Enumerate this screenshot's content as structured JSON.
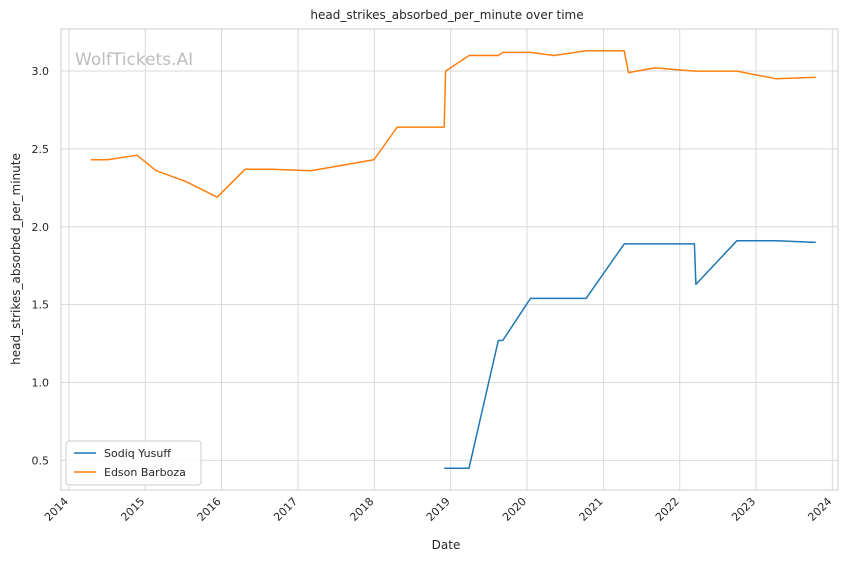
{
  "chart_data": {
    "type": "line",
    "title": "head_strikes_absorbed_per_minute over time",
    "xlabel": "Date",
    "ylabel": "head_strikes_absorbed_per_minute",
    "watermark": "WolfTickets.AI",
    "xlim": [
      "2013-11-24",
      "2024-01-28"
    ],
    "ylim": [
      0.31,
      3.27
    ],
    "x_ticks": [
      "2014",
      "2015",
      "2016",
      "2017",
      "2018",
      "2019",
      "2020",
      "2021",
      "2022",
      "2023",
      "2024"
    ],
    "y_ticks": [
      "0.5",
      "1.0",
      "1.5",
      "2.0",
      "2.5",
      "3.0"
    ],
    "grid": true,
    "legend_position": "lower-left",
    "series": [
      {
        "name": "Sodiq Yusuff",
        "color": "#1f77b4",
        "x": [
          "2018-12-01",
          "2019-03-30",
          "2019-08-17",
          "2019-09-07",
          "2020-01-18",
          "2020-10-10",
          "2021-04-10",
          "2022-03-12",
          "2022-03-19",
          "2022-10-01",
          "2023-04-08",
          "2023-10-14"
        ],
        "y": [
          0.45,
          0.45,
          1.27,
          1.27,
          1.54,
          1.54,
          1.89,
          1.89,
          1.63,
          1.91,
          1.91,
          1.9
        ]
      },
      {
        "name": "Edson Barboza",
        "color": "#ff7f0e",
        "x": [
          "2014-04-16",
          "2014-07-05",
          "2014-11-22",
          "2015-02-22",
          "2015-07-15",
          "2015-12-11",
          "2016-04-23",
          "2016-08-27",
          "2017-03-04",
          "2017-12-30",
          "2018-04-21",
          "2018-12-01",
          "2018-12-08",
          "2019-03-30",
          "2019-08-17",
          "2019-09-07",
          "2020-01-18",
          "2020-05-09",
          "2020-10-10",
          "2021-04-10",
          "2021-05-01",
          "2021-09-04",
          "2022-03-12",
          "2022-10-01",
          "2023-04-08",
          "2023-10-14"
        ],
        "y": [
          2.43,
          2.43,
          2.46,
          2.36,
          2.29,
          2.19,
          2.37,
          2.37,
          2.36,
          2.43,
          2.64,
          2.64,
          3.0,
          3.1,
          3.1,
          3.12,
          3.12,
          3.1,
          3.13,
          3.13,
          2.99,
          3.02,
          3.0,
          3.0,
          2.95,
          2.96
        ]
      }
    ]
  }
}
